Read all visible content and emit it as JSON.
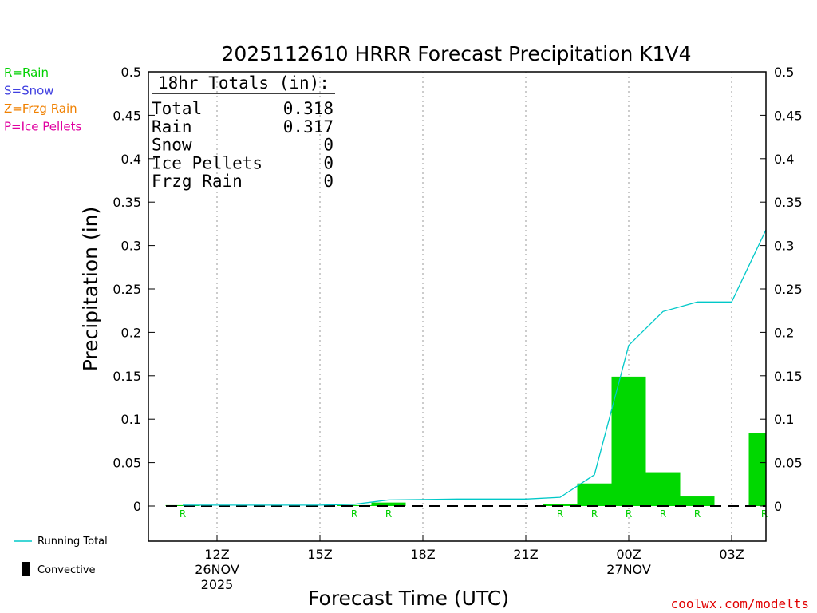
{
  "chart_data": {
    "type": "bar",
    "title": "2025112610 HRRR Forecast Precipitation K1V4",
    "xlabel": "Forecast Time (UTC)",
    "ylabel": "Precipitation (in)",
    "ylim": [
      -0.04,
      0.5
    ],
    "yticks": [
      "0",
      "0.05",
      "0.1",
      "0.15",
      "0.2",
      "0.25",
      "0.3",
      "0.35",
      "0.4",
      "0.45",
      "0.5"
    ],
    "ytick_values": [
      0,
      0.05,
      0.1,
      0.15,
      0.2,
      0.25,
      0.3,
      0.35,
      0.4,
      0.45,
      0.5
    ],
    "grid": "vertical dotted",
    "hours": [
      11,
      12,
      13,
      14,
      15,
      16,
      17,
      18,
      19,
      20,
      21,
      22,
      23,
      24,
      25,
      26,
      27,
      28
    ],
    "xticks": [
      {
        "hour": 12,
        "lines": [
          "12Z",
          "26NOV",
          "2025"
        ]
      },
      {
        "hour": 15,
        "lines": [
          "15Z"
        ]
      },
      {
        "hour": 18,
        "lines": [
          "18Z"
        ]
      },
      {
        "hour": 21,
        "lines": [
          "21Z"
        ]
      },
      {
        "hour": 24,
        "lines": [
          "00Z",
          "27NOV"
        ]
      },
      {
        "hour": 27,
        "lines": [
          "03Z"
        ]
      }
    ],
    "series": [
      {
        "name": "Rain",
        "type": "bar",
        "color": "#00d800",
        "values": [
          0.001,
          0,
          0,
          0,
          0,
          0.001,
          0.004,
          0,
          0,
          0,
          0,
          0.002,
          0.026,
          0.149,
          0.039,
          0.011,
          0,
          0.084
        ]
      },
      {
        "name": "Running Total",
        "type": "line",
        "color": "#00c8c8",
        "values": [
          0.001,
          0.001,
          0.001,
          0.001,
          0.001,
          0.002,
          0.007,
          0.0075,
          0.008,
          0.008,
          0.008,
          0.01,
          0.036,
          0.185,
          0.224,
          0.235,
          0.235,
          0.318
        ]
      }
    ],
    "precip_type_marks": [
      {
        "hour": 11,
        "label": "R"
      },
      {
        "hour": 16,
        "label": "R"
      },
      {
        "hour": 17,
        "label": "R"
      },
      {
        "hour": 22,
        "label": "R"
      },
      {
        "hour": 23,
        "label": "R"
      },
      {
        "hour": 24,
        "label": "R"
      },
      {
        "hour": 25,
        "label": "R"
      },
      {
        "hour": 26,
        "label": "R"
      },
      {
        "hour": 28,
        "label": "R"
      }
    ]
  },
  "type_legend": [
    {
      "text": "R=Rain",
      "color": "#00d000"
    },
    {
      "text": "S=Snow",
      "color": "#4040e0"
    },
    {
      "text": "Z=Frzg Rain",
      "color": "#f08000"
    },
    {
      "text": "P=Ice Pellets",
      "color": "#e000a0"
    }
  ],
  "totals": {
    "header": "18hr Totals (in):",
    "rows": [
      {
        "label": "Total",
        "value": "0.318"
      },
      {
        "label": "Rain",
        "value": "0.317"
      },
      {
        "label": "Snow",
        "value": "0"
      },
      {
        "label": "Ice Pellets",
        "value": "0"
      },
      {
        "label": "Frzg Rain",
        "value": "0"
      }
    ]
  },
  "bottom_legend": {
    "running_total": "Running Total",
    "convective": "Convective"
  },
  "credit": "coolwx.com/modelts"
}
